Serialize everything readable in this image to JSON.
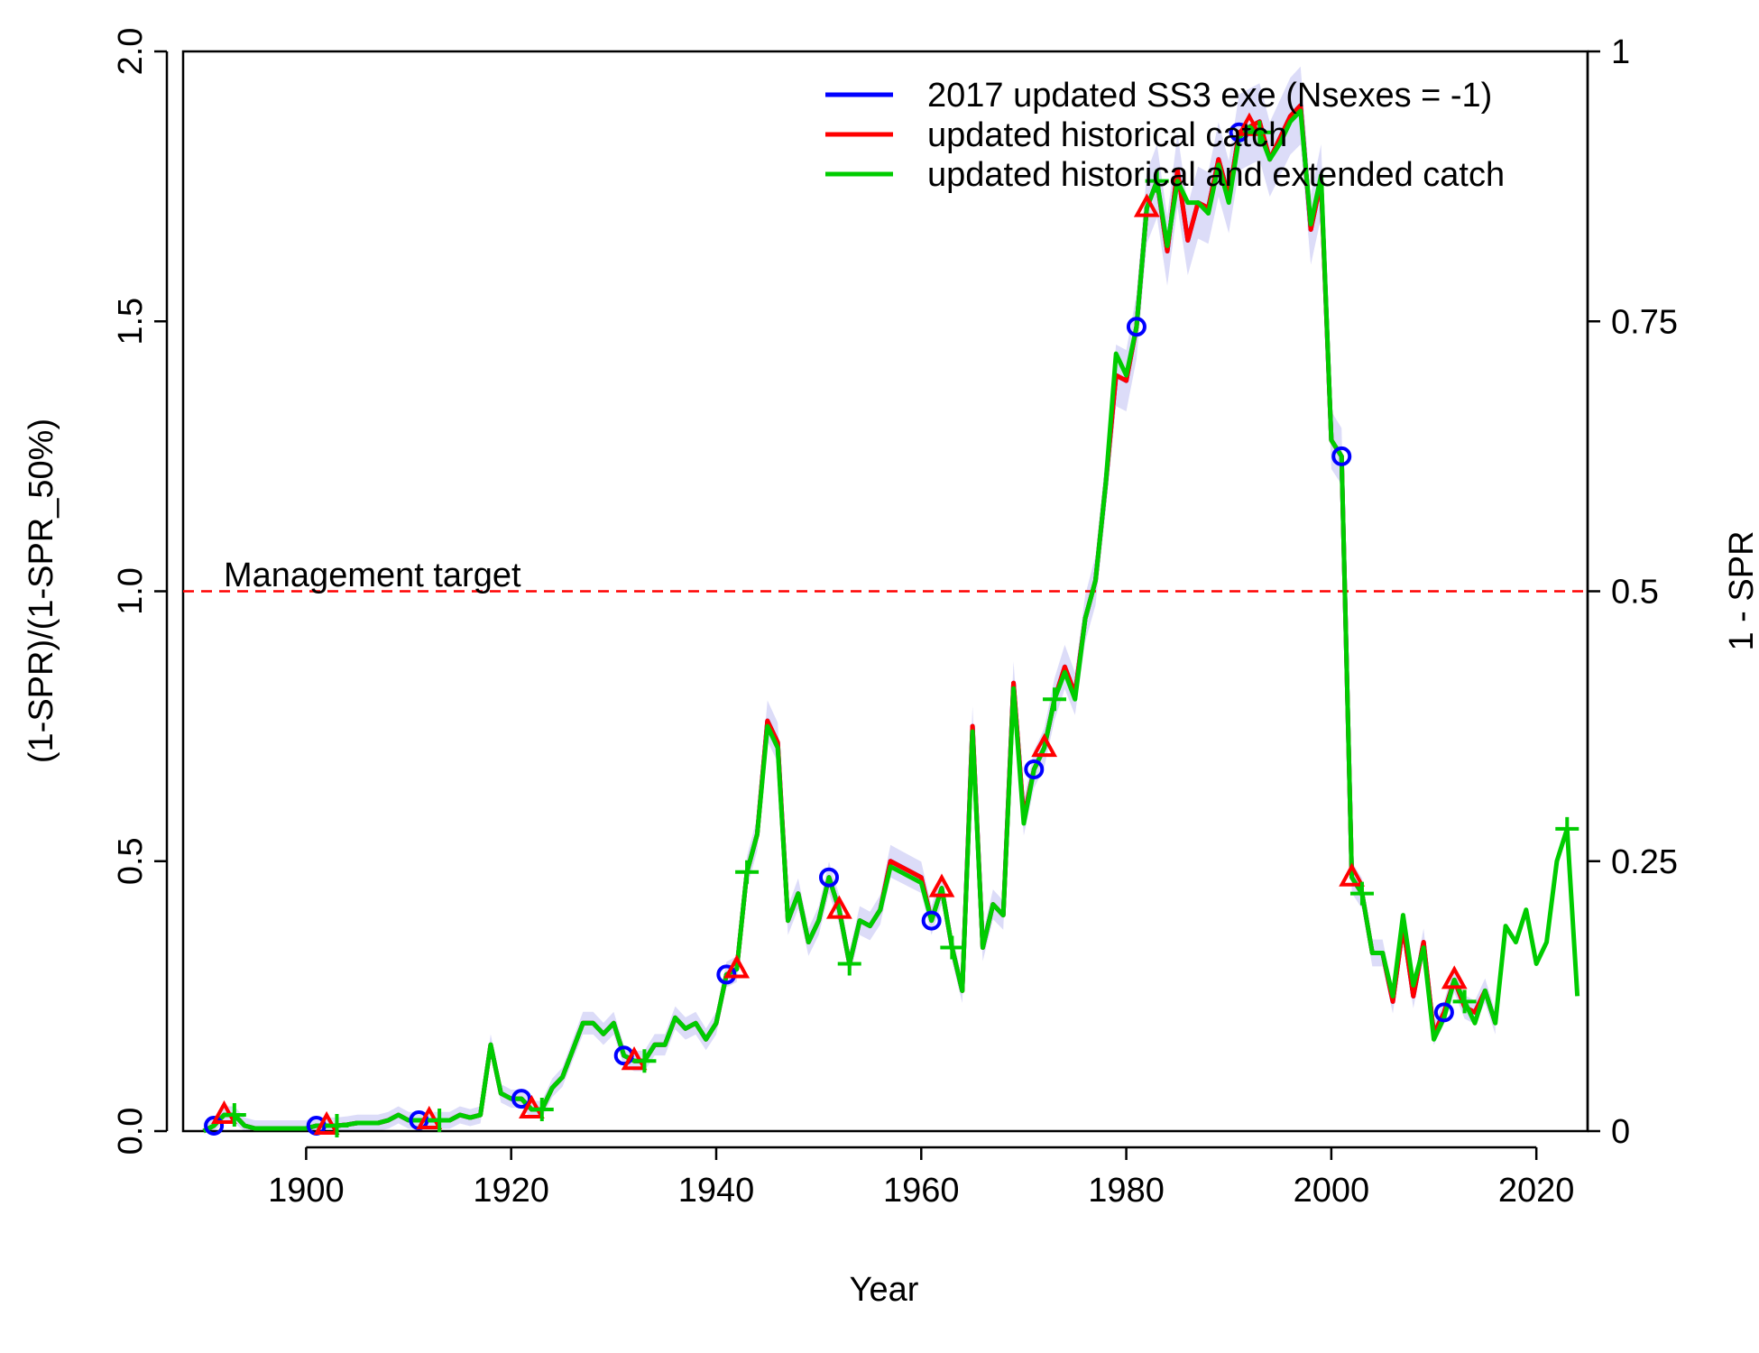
{
  "chart_data": {
    "type": "line",
    "title": "",
    "xlabel": "Year",
    "ylabel": "(1-SPR)/(1-SPR_50%)",
    "y2label": "1 - SPR",
    "xlim": [
      1888,
      2025
    ],
    "ylim": [
      0,
      2
    ],
    "y2lim": [
      0,
      1
    ],
    "x_ticks": [
      1900,
      1920,
      1940,
      1960,
      1980,
      2000,
      2020
    ],
    "y_ticks": [
      "0.0",
      "0.5",
      "1.0",
      "1.5",
      "2.0"
    ],
    "y2_ticks": [
      "0",
      "0.25",
      "0.5",
      "0.75",
      "1"
    ],
    "grid": false,
    "legend_position": "top-right",
    "reference_line": {
      "y": 1.0,
      "label": "Management target",
      "color": "#ff0000",
      "style": "dashed"
    },
    "series": [
      {
        "name": "2017 updated SS3 exe (Nsexes = -1)",
        "color": "#0000ff",
        "marker": "circle",
        "x": [
          1890,
          1891,
          1892,
          1893,
          1894,
          1895,
          1896,
          1897,
          1898,
          1899,
          1900,
          1901,
          1902,
          1903,
          1904,
          1905,
          1906,
          1907,
          1908,
          1909,
          1910,
          1911,
          1912,
          1913,
          1914,
          1915,
          1916,
          1917,
          1918,
          1919,
          1920,
          1921,
          1922,
          1923,
          1924,
          1925,
          1926,
          1927,
          1928,
          1929,
          1930,
          1931,
          1932,
          1933,
          1934,
          1935,
          1936,
          1937,
          1938,
          1939,
          1940,
          1941,
          1942,
          1943,
          1944,
          1945,
          1946,
          1947,
          1948,
          1949,
          1950,
          1951,
          1952,
          1953,
          1954,
          1955,
          1956,
          1957,
          1958,
          1959,
          1960,
          1961,
          1962,
          1963,
          1964,
          1965,
          1966,
          1967,
          1968,
          1969,
          1970,
          1971,
          1972,
          1973,
          1974,
          1975,
          1976,
          1977,
          1978,
          1979,
          1980,
          1981,
          1982,
          1983,
          1984,
          1985,
          1986,
          1987,
          1988,
          1989,
          1990,
          1991,
          1992,
          1993,
          1994,
          1995,
          1996,
          1997,
          1998,
          1999,
          2000,
          2001,
          2002,
          2003,
          2004,
          2005,
          2006,
          2007,
          2008,
          2009,
          2010,
          2011,
          2012,
          2013,
          2014,
          2015,
          2016
        ],
        "y": [
          0.0,
          0.01,
          0.03,
          0.03,
          0.01,
          0.005,
          0.005,
          0.005,
          0.005,
          0.005,
          0.005,
          0.01,
          0.01,
          0.01,
          0.012,
          0.015,
          0.015,
          0.015,
          0.02,
          0.03,
          0.02,
          0.02,
          0.02,
          0.02,
          0.02,
          0.03,
          0.025,
          0.03,
          0.16,
          0.07,
          0.06,
          0.06,
          0.04,
          0.04,
          0.08,
          0.1,
          0.15,
          0.2,
          0.2,
          0.18,
          0.2,
          0.14,
          0.13,
          0.13,
          0.16,
          0.16,
          0.21,
          0.19,
          0.2,
          0.17,
          0.2,
          0.29,
          0.3,
          0.48,
          0.55,
          0.76,
          0.72,
          0.39,
          0.44,
          0.35,
          0.39,
          0.47,
          0.41,
          0.31,
          0.39,
          0.38,
          0.41,
          0.5,
          0.49,
          0.48,
          0.47,
          0.39,
          0.45,
          0.34,
          0.26,
          0.75,
          0.34,
          0.42,
          0.4,
          0.83,
          0.58,
          0.67,
          0.71,
          0.8,
          0.86,
          0.81,
          0.95,
          1.02,
          1.2,
          1.4,
          1.39,
          1.49,
          1.71,
          1.76,
          1.63,
          1.78,
          1.65,
          1.72,
          1.71,
          1.8,
          1.73,
          1.85,
          1.86,
          1.87,
          1.8,
          1.84,
          1.88,
          1.9,
          1.67,
          1.76,
          1.28,
          1.25,
          0.47,
          0.44,
          0.33,
          0.33,
          0.24,
          0.38,
          0.25,
          0.35,
          0.18,
          0.22,
          0.28,
          0.23,
          0.22,
          0.26,
          0.2
        ]
      },
      {
        "name": "updated historical catch",
        "color": "#ff0000",
        "marker": "triangle",
        "x": [
          1890,
          1891,
          1892,
          1893,
          1894,
          1895,
          1896,
          1897,
          1898,
          1899,
          1900,
          1901,
          1902,
          1903,
          1904,
          1905,
          1906,
          1907,
          1908,
          1909,
          1910,
          1911,
          1912,
          1913,
          1914,
          1915,
          1916,
          1917,
          1918,
          1919,
          1920,
          1921,
          1922,
          1923,
          1924,
          1925,
          1926,
          1927,
          1928,
          1929,
          1930,
          1931,
          1932,
          1933,
          1934,
          1935,
          1936,
          1937,
          1938,
          1939,
          1940,
          1941,
          1942,
          1943,
          1944,
          1945,
          1946,
          1947,
          1948,
          1949,
          1950,
          1951,
          1952,
          1953,
          1954,
          1955,
          1956,
          1957,
          1958,
          1959,
          1960,
          1961,
          1962,
          1963,
          1964,
          1965,
          1966,
          1967,
          1968,
          1969,
          1970,
          1971,
          1972,
          1973,
          1974,
          1975,
          1976,
          1977,
          1978,
          1979,
          1980,
          1981,
          1982,
          1983,
          1984,
          1985,
          1986,
          1987,
          1988,
          1989,
          1990,
          1991,
          1992,
          1993,
          1994,
          1995,
          1996,
          1997,
          1998,
          1999,
          2000,
          2001,
          2002,
          2003,
          2004,
          2005,
          2006,
          2007,
          2008,
          2009,
          2010,
          2011,
          2012,
          2013,
          2014,
          2015,
          2016
        ],
        "y": [
          0.0,
          0.01,
          0.03,
          0.03,
          0.01,
          0.005,
          0.005,
          0.005,
          0.005,
          0.005,
          0.005,
          0.01,
          0.01,
          0.01,
          0.012,
          0.015,
          0.015,
          0.015,
          0.02,
          0.03,
          0.02,
          0.02,
          0.02,
          0.02,
          0.02,
          0.03,
          0.025,
          0.03,
          0.16,
          0.07,
          0.06,
          0.06,
          0.04,
          0.04,
          0.08,
          0.1,
          0.15,
          0.2,
          0.2,
          0.18,
          0.2,
          0.14,
          0.13,
          0.13,
          0.16,
          0.16,
          0.21,
          0.19,
          0.2,
          0.17,
          0.2,
          0.29,
          0.3,
          0.48,
          0.55,
          0.76,
          0.72,
          0.39,
          0.44,
          0.35,
          0.39,
          0.47,
          0.41,
          0.31,
          0.39,
          0.38,
          0.41,
          0.5,
          0.49,
          0.48,
          0.47,
          0.39,
          0.45,
          0.34,
          0.26,
          0.75,
          0.34,
          0.42,
          0.4,
          0.83,
          0.58,
          0.67,
          0.71,
          0.8,
          0.86,
          0.81,
          0.95,
          1.02,
          1.2,
          1.4,
          1.39,
          1.49,
          1.71,
          1.76,
          1.63,
          1.78,
          1.65,
          1.72,
          1.71,
          1.8,
          1.73,
          1.85,
          1.86,
          1.87,
          1.8,
          1.84,
          1.88,
          1.9,
          1.67,
          1.76,
          1.28,
          1.25,
          0.47,
          0.44,
          0.33,
          0.33,
          0.24,
          0.38,
          0.25,
          0.35,
          0.18,
          0.22,
          0.28,
          0.23,
          0.22,
          0.26,
          0.2
        ]
      },
      {
        "name": "updated historical and extended catch",
        "color": "#00cc00",
        "marker": "plus",
        "x": [
          1890,
          1891,
          1892,
          1893,
          1894,
          1895,
          1896,
          1897,
          1898,
          1899,
          1900,
          1901,
          1902,
          1903,
          1904,
          1905,
          1906,
          1907,
          1908,
          1909,
          1910,
          1911,
          1912,
          1913,
          1914,
          1915,
          1916,
          1917,
          1918,
          1919,
          1920,
          1921,
          1922,
          1923,
          1924,
          1925,
          1926,
          1927,
          1928,
          1929,
          1930,
          1931,
          1932,
          1933,
          1934,
          1935,
          1936,
          1937,
          1938,
          1939,
          1940,
          1941,
          1942,
          1943,
          1944,
          1945,
          1946,
          1947,
          1948,
          1949,
          1950,
          1951,
          1952,
          1953,
          1954,
          1955,
          1956,
          1957,
          1958,
          1959,
          1960,
          1961,
          1962,
          1963,
          1964,
          1965,
          1966,
          1967,
          1968,
          1969,
          1970,
          1971,
          1972,
          1973,
          1974,
          1975,
          1976,
          1977,
          1978,
          1979,
          1980,
          1981,
          1982,
          1983,
          1984,
          1985,
          1986,
          1987,
          1988,
          1989,
          1990,
          1991,
          1992,
          1993,
          1994,
          1995,
          1996,
          1997,
          1998,
          1999,
          2000,
          2001,
          2002,
          2003,
          2004,
          2005,
          2006,
          2007,
          2008,
          2009,
          2010,
          2011,
          2012,
          2013,
          2014,
          2015,
          2016,
          2017,
          2018,
          2019,
          2020,
          2021,
          2022,
          2023,
          2024
        ],
        "y": [
          0.0,
          0.01,
          0.03,
          0.03,
          0.01,
          0.005,
          0.005,
          0.005,
          0.005,
          0.005,
          0.005,
          0.01,
          0.01,
          0.01,
          0.012,
          0.015,
          0.015,
          0.015,
          0.02,
          0.03,
          0.02,
          0.02,
          0.02,
          0.02,
          0.02,
          0.03,
          0.025,
          0.03,
          0.16,
          0.07,
          0.06,
          0.06,
          0.04,
          0.04,
          0.08,
          0.1,
          0.15,
          0.2,
          0.2,
          0.18,
          0.2,
          0.14,
          0.13,
          0.13,
          0.16,
          0.16,
          0.21,
          0.19,
          0.2,
          0.17,
          0.2,
          0.29,
          0.3,
          0.48,
          0.55,
          0.75,
          0.71,
          0.39,
          0.44,
          0.35,
          0.39,
          0.47,
          0.41,
          0.31,
          0.39,
          0.38,
          0.41,
          0.49,
          0.48,
          0.47,
          0.46,
          0.39,
          0.45,
          0.34,
          0.26,
          0.74,
          0.34,
          0.42,
          0.4,
          0.82,
          0.57,
          0.67,
          0.71,
          0.8,
          0.85,
          0.8,
          0.95,
          1.02,
          1.2,
          1.44,
          1.4,
          1.49,
          1.71,
          1.76,
          1.64,
          1.76,
          1.72,
          1.72,
          1.7,
          1.79,
          1.72,
          1.84,
          1.86,
          1.85,
          1.8,
          1.83,
          1.87,
          1.89,
          1.68,
          1.77,
          1.28,
          1.25,
          0.47,
          0.44,
          0.33,
          0.33,
          0.25,
          0.4,
          0.27,
          0.34,
          0.17,
          0.21,
          0.28,
          0.24,
          0.2,
          0.26,
          0.2,
          0.38,
          0.35,
          0.41,
          0.31,
          0.35,
          0.5,
          0.56,
          0.25
        ]
      }
    ]
  }
}
